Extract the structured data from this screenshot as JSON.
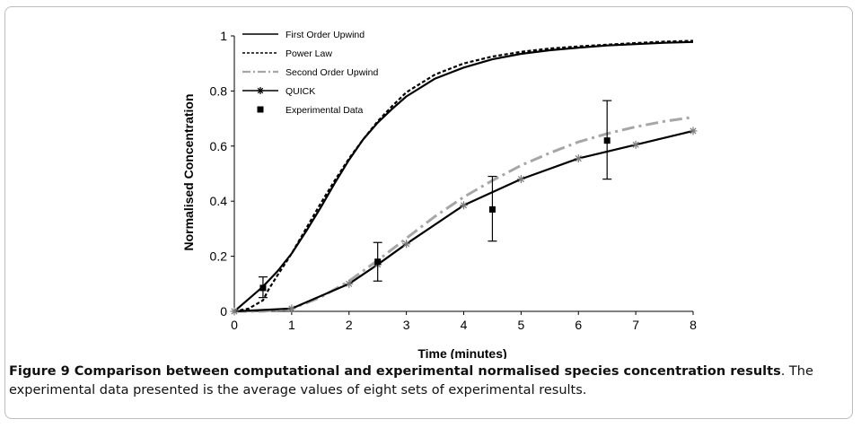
{
  "chart_data": {
    "type": "line",
    "xlabel": "Time (minutes)",
    "ylabel": "Normalised Concentration",
    "xlim": [
      0,
      8
    ],
    "ylim": [
      0,
      1
    ],
    "xticks": [
      "0",
      "1",
      "2",
      "3",
      "4",
      "5",
      "6",
      "7",
      "8"
    ],
    "yticks": [
      "0",
      "0.2",
      "0.4",
      "0.6",
      "0.8",
      "1"
    ],
    "grid": false,
    "legend_position": "top-left",
    "series": [
      {
        "name": "First Order Upwind",
        "style": "solid",
        "color": "#000000",
        "x": [
          0,
          0.25,
          0.5,
          0.75,
          1.0,
          1.25,
          1.5,
          1.75,
          2.0,
          2.25,
          2.5,
          2.75,
          3.0,
          3.5,
          4.0,
          4.5,
          5.0,
          5.5,
          6.0,
          6.5,
          7.0,
          7.5,
          8.0
        ],
        "y": [
          0,
          0.045,
          0.09,
          0.145,
          0.21,
          0.29,
          0.375,
          0.465,
          0.55,
          0.625,
          0.685,
          0.735,
          0.78,
          0.845,
          0.885,
          0.915,
          0.935,
          0.948,
          0.957,
          0.965,
          0.97,
          0.975,
          0.978
        ]
      },
      {
        "name": "Power Law",
        "style": "dashed",
        "color": "#000000",
        "x": [
          0,
          0.25,
          0.5,
          0.6,
          0.75,
          1.0,
          1.25,
          1.5,
          1.75,
          2.0,
          2.25,
          2.5,
          2.75,
          3.0,
          3.5,
          4.0,
          4.5,
          5.0,
          5.5,
          6.0,
          6.5,
          7.0,
          7.5,
          8.0
        ],
        "y": [
          0,
          0.01,
          0.04,
          0.08,
          0.13,
          0.21,
          0.3,
          0.39,
          0.475,
          0.555,
          0.625,
          0.69,
          0.745,
          0.795,
          0.86,
          0.9,
          0.925,
          0.942,
          0.954,
          0.962,
          0.968,
          0.974,
          0.979,
          0.982
        ]
      },
      {
        "name": "Second Order Upwind",
        "style": "dashdot",
        "color": "#a6a6a6",
        "x": [
          0,
          0.5,
          1.0,
          1.5,
          2.0,
          2.5,
          3.0,
          3.5,
          4.0,
          4.5,
          5.0,
          5.5,
          6.0,
          6.5,
          7.0,
          7.5,
          8.0
        ],
        "y": [
          0,
          0,
          0.01,
          0.05,
          0.11,
          0.185,
          0.265,
          0.345,
          0.415,
          0.475,
          0.53,
          0.575,
          0.615,
          0.645,
          0.67,
          0.69,
          0.705
        ]
      },
      {
        "name": "QUICK",
        "style": "solid-star",
        "color": "#000000",
        "x": [
          0,
          1,
          2,
          2.5,
          3,
          4,
          5,
          6,
          7,
          8
        ],
        "y": [
          0,
          0.01,
          0.1,
          0.17,
          0.245,
          0.385,
          0.48,
          0.555,
          0.605,
          0.655
        ]
      }
    ],
    "experimental": {
      "name": "Experimental Data",
      "x": [
        0.5,
        2.5,
        4.5,
        6.5
      ],
      "y": [
        0.085,
        0.18,
        0.37,
        0.62
      ],
      "err_low": [
        0.05,
        0.11,
        0.255,
        0.48
      ],
      "err_high": [
        0.125,
        0.25,
        0.49,
        0.765
      ]
    }
  },
  "caption": {
    "bold": "Figure 9 Comparison between computational and experimental normalised species concentration results",
    "rest": ". The experimental data presented is the average values of eight sets of experimental results."
  }
}
